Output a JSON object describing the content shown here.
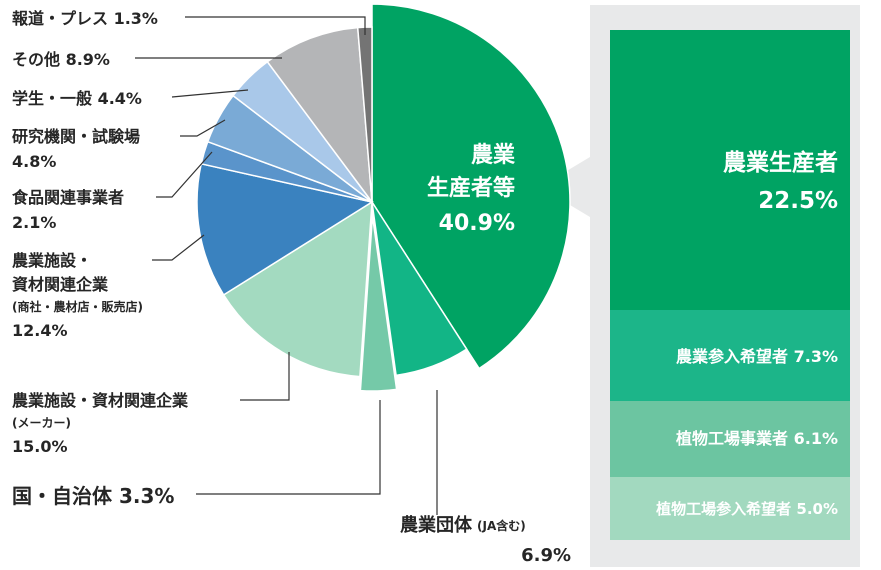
{
  "chart_data": {
    "type": "pie",
    "slices": [
      {
        "label": "農業 生産者等",
        "value": 40.9,
        "color": "#00a363"
      },
      {
        "label": "農業団体",
        "label_note": "(JA含む)",
        "value": 6.9,
        "color": "#12b586"
      },
      {
        "label": "国・自治体",
        "value": 3.3,
        "color": "#75c9a8",
        "exploded": true
      },
      {
        "label": "農業施設・資材関連企業",
        "label_note": "(メーカー)",
        "value": 15.0,
        "color": "#a3dac0"
      },
      {
        "label": "農業施設・資材関連企業",
        "label_note": "(商社・農材店・販売店)",
        "value": 12.4,
        "color": "#3a82bf"
      },
      {
        "label": "食品関連事業者",
        "value": 2.1,
        "color": "#5a94cb"
      },
      {
        "label": "研究機関・試験場",
        "value": 4.8,
        "color": "#7aaad6"
      },
      {
        "label": "学生・一般",
        "value": 4.4,
        "color": "#a9c8e9"
      },
      {
        "label": "その他",
        "value": 8.9,
        "color": "#b4b5b7"
      },
      {
        "label": "報道・プレス",
        "value": 1.3,
        "color": "#747474"
      }
    ],
    "center_label": {
      "lines": [
        "農業",
        "生産者等"
      ],
      "value": "40.9%"
    },
    "outer_labels": [
      {
        "lines": [
          "報道・プレス 1.3%"
        ]
      },
      {
        "lines": [
          "その他 8.9%"
        ]
      },
      {
        "lines": [
          "学生・一般 4.4%"
        ]
      },
      {
        "lines": [
          "研究機関・試験場",
          "4.8%"
        ]
      },
      {
        "lines": [
          "食品関連事業者",
          "2.1%"
        ]
      },
      {
        "lines": [
          "農業施設・",
          "資材関連企業",
          "(商社・農材店・販売店)",
          "12.4%"
        ]
      },
      {
        "lines": [
          "農業施設・資材関連企業",
          "(メーカー)",
          "15.0%"
        ]
      },
      {
        "lines": [
          "国・自治体 3.3%"
        ]
      },
      {
        "lines": [
          "農業団体",
          "(JA含む)",
          "6.9%"
        ]
      }
    ],
    "breakdown": {
      "segments": [
        {
          "label": "農業生産者",
          "value": "22.5%",
          "num": 22.5,
          "color": "#00a363"
        },
        {
          "label": "農業参入希望者 7.3%",
          "num": 7.3,
          "color": "#1cb589"
        },
        {
          "label": "植物工場事業者 6.1%",
          "num": 6.1,
          "color": "#6cc5a1"
        },
        {
          "label": "植物工場参入希望者 5.0%",
          "num": 5.0,
          "color": "#a2d9bf"
        }
      ]
    },
    "colors": {
      "panel_bg": "#e8e9ea",
      "text_dark": "#262626",
      "text_white": "#ffffff"
    }
  }
}
